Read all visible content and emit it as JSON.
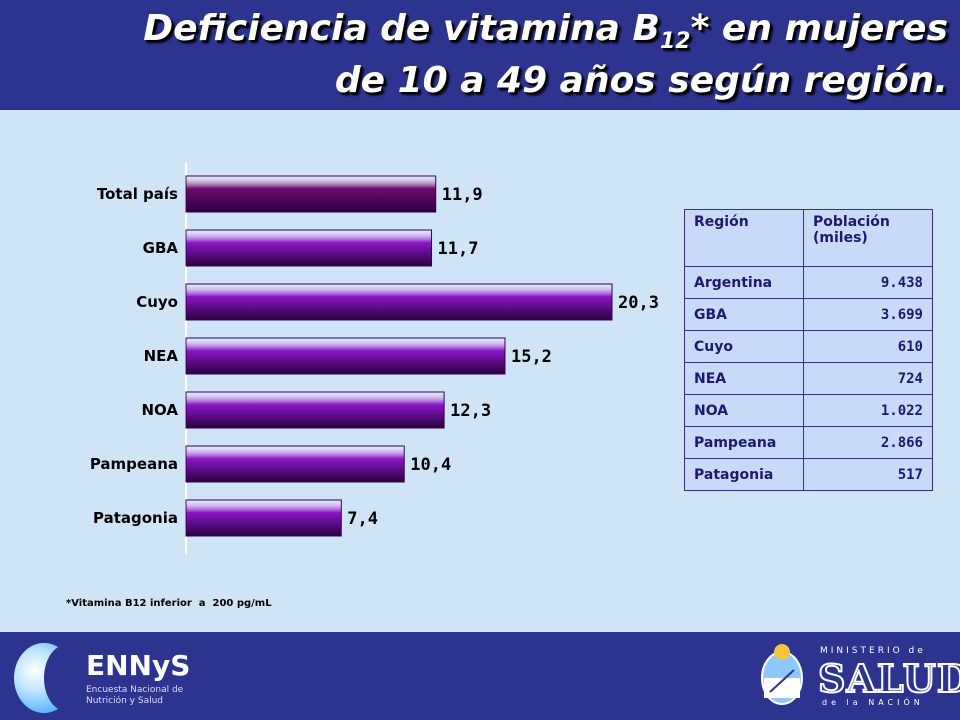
{
  "header": {
    "title_line1_main": "Deficiencia de vitamina B",
    "title_sub": "12",
    "title_line1_rest": "* en mujeres",
    "title_line2": "de 10 a 49 años según región."
  },
  "chart_data": {
    "type": "bar",
    "orientation": "horizontal",
    "categories": [
      "Total país",
      "GBA",
      "Cuyo",
      "NEA",
      "NOA",
      "Pampeana",
      "Patagonia"
    ],
    "values": [
      11.9,
      11.7,
      20.3,
      15.2,
      12.3,
      10.4,
      7.4
    ],
    "value_labels": [
      "11,9",
      "11,7",
      "20,3",
      "15,2",
      "12,3",
      "10,4",
      "7,4"
    ],
    "title": "",
    "xlabel": "",
    "ylabel": "",
    "xlim": [
      0,
      20.3
    ],
    "grid": false,
    "legend": "none",
    "colors": {
      "total": "#6e0a6e",
      "regions": "#8a16c6"
    }
  },
  "note": "*Vitamina B12 inferior  a  200 pg/mL",
  "table": {
    "headers": [
      "Región",
      "Población (miles)"
    ],
    "rows": [
      [
        "Argentina",
        "9.438"
      ],
      [
        "GBA",
        "3.699"
      ],
      [
        "Cuyo",
        "610"
      ],
      [
        "NEA",
        "724"
      ],
      [
        "NOA",
        "1.022"
      ],
      [
        "Pampeana",
        "2.866"
      ],
      [
        "Patagonia",
        "517"
      ]
    ]
  },
  "logos": {
    "ennys_brand": "ENNyS",
    "ennys_subtitle": "Encuesta Nacional de Nutrición y Salud",
    "ministerio_top": "MINISTERIO de",
    "ministerio_main": "SALUD",
    "ministerio_bottom": "de la NACIÓN"
  },
  "theme": {
    "header_bg": "#2d3490",
    "page_bg": "#cfe4f7",
    "table_bg": "#c9d9f8"
  }
}
